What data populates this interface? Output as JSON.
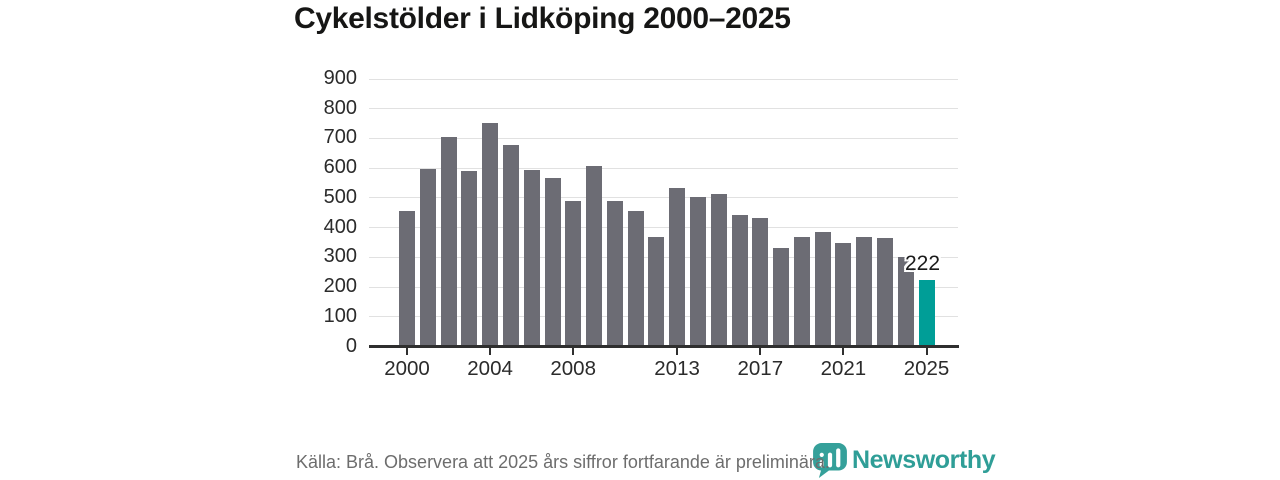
{
  "title": "Cykelstölder i Lidköping 2000–2025",
  "chart_data": {
    "type": "bar",
    "title": "Cykelstölder i Lidköping 2000–2025",
    "xlabel": "",
    "ylabel": "",
    "x": [
      2000,
      2001,
      2002,
      2003,
      2004,
      2005,
      2006,
      2007,
      2008,
      2009,
      2010,
      2011,
      2012,
      2013,
      2014,
      2015,
      2016,
      2017,
      2018,
      2019,
      2020,
      2021,
      2022,
      2023,
      2024,
      2025
    ],
    "values": [
      455,
      595,
      702,
      588,
      750,
      678,
      593,
      567,
      487,
      605,
      487,
      455,
      368,
      533,
      500,
      510,
      441,
      430,
      330,
      368,
      385,
      346,
      368,
      365,
      298,
      222
    ],
    "ylim": [
      0,
      900
    ],
    "yticks": [
      0,
      100,
      200,
      300,
      400,
      500,
      600,
      700,
      800,
      900
    ],
    "xticks": [
      2000,
      2004,
      2008,
      2013,
      2017,
      2021,
      2025
    ],
    "grid": "horizontal",
    "legend": "none",
    "highlight_year": 2025,
    "highlight_value_label": "222",
    "bar_color": "#6c6c74",
    "highlight_color": "#009e97"
  },
  "footer": {
    "source_note": "Källa: Brå. Observera att 2025 års siffror fortfarande är preliminära."
  },
  "logo": {
    "wordmark": "Newsworthy",
    "icon": "newsworthy-bubble-barchart-icon",
    "color": "#2f9e97"
  }
}
